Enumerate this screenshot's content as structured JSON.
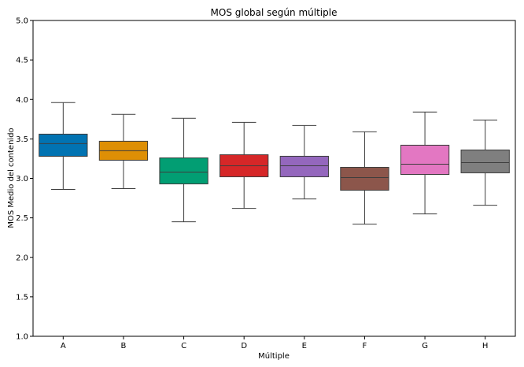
{
  "chart_data": {
    "type": "box",
    "title": "MOS global según múltiple",
    "xlabel": "Múltiple",
    "ylabel": "MOS Medio del contenido",
    "ylim": [
      1.0,
      5.0
    ],
    "yticks": [
      "1.0",
      "1.5",
      "2.0",
      "2.5",
      "3.0",
      "3.5",
      "4.0",
      "4.5",
      "5.0"
    ],
    "grid": false,
    "categories": [
      "A",
      "B",
      "C",
      "D",
      "E",
      "F",
      "G",
      "H"
    ],
    "boxes": [
      {
        "label": "A",
        "whisker_low": 2.86,
        "q1": 3.28,
        "median": 3.44,
        "q3": 3.56,
        "whisker_high": 3.96,
        "color": "#0173b2"
      },
      {
        "label": "B",
        "whisker_low": 2.87,
        "q1": 3.23,
        "median": 3.35,
        "q3": 3.47,
        "whisker_high": 3.81,
        "color": "#de8f05"
      },
      {
        "label": "C",
        "whisker_low": 2.45,
        "q1": 2.93,
        "median": 3.08,
        "q3": 3.26,
        "whisker_high": 3.76,
        "color": "#029e73"
      },
      {
        "label": "D",
        "whisker_low": 2.62,
        "q1": 3.02,
        "median": 3.16,
        "q3": 3.3,
        "whisker_high": 3.71,
        "color": "#d62728"
      },
      {
        "label": "E",
        "whisker_low": 2.74,
        "q1": 3.02,
        "median": 3.16,
        "q3": 3.28,
        "whisker_high": 3.67,
        "color": "#9467bd"
      },
      {
        "label": "F",
        "whisker_low": 2.42,
        "q1": 2.85,
        "median": 3.01,
        "q3": 3.14,
        "whisker_high": 3.59,
        "color": "#8c564b"
      },
      {
        "label": "G",
        "whisker_low": 2.55,
        "q1": 3.05,
        "median": 3.18,
        "q3": 3.42,
        "whisker_high": 3.84,
        "color": "#e377c2"
      },
      {
        "label": "H",
        "whisker_low": 2.66,
        "q1": 3.07,
        "median": 3.2,
        "q3": 3.36,
        "whisker_high": 3.74,
        "color": "#7f7f7f"
      }
    ]
  }
}
